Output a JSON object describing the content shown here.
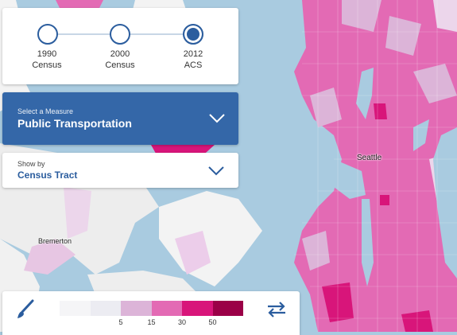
{
  "timeline": {
    "items": [
      {
        "line1": "1990",
        "line2": "Census",
        "active": false
      },
      {
        "line1": "2000",
        "line2": "Census",
        "active": false
      },
      {
        "line1": "2012",
        "line2": "ACS",
        "active": true
      }
    ]
  },
  "measure": {
    "caption": "Select a Measure",
    "value": "Public Transportation"
  },
  "show_by": {
    "caption": "Show by",
    "value": "Census Tract"
  },
  "map": {
    "labels": {
      "seattle": "Seattle",
      "bremerton": "Bremerton"
    },
    "colors": {
      "water": "#a9cbe0",
      "land": "#f3f3f3"
    }
  },
  "legend": {
    "colors": [
      "#f5f5f7",
      "#ececf2",
      "#dcb4d8",
      "#e36ab4",
      "#d8157a",
      "#9b0047"
    ],
    "ticks": [
      "5",
      "15",
      "30",
      "50"
    ]
  },
  "icons": {
    "brush": "brush-icon",
    "swap": "swap-arrows-icon"
  }
}
